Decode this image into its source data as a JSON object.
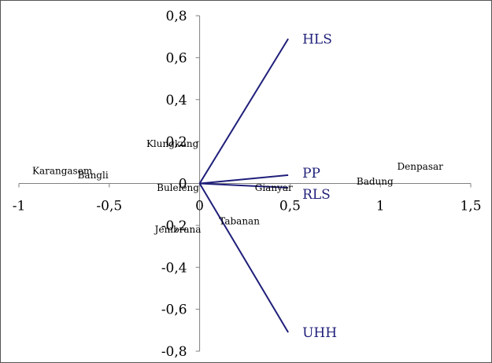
{
  "chart_data": {
    "type": "scatter",
    "title": "",
    "xlabel": "",
    "ylabel": "",
    "xlim": [
      -1,
      1.5
    ],
    "ylim": [
      -0.8,
      0.8
    ],
    "x_ticks": [
      {
        "value": -1,
        "label": "-1"
      },
      {
        "value": -0.5,
        "label": "-0,5"
      },
      {
        "value": 0,
        "label": "0"
      },
      {
        "value": 0.5,
        "label": "0,5"
      },
      {
        "value": 1,
        "label": "1"
      },
      {
        "value": 1.5,
        "label": "1,5"
      }
    ],
    "y_ticks": [
      {
        "value": 0.8,
        "label": "0,8"
      },
      {
        "value": 0.6,
        "label": "0,6"
      },
      {
        "value": 0.4,
        "label": "0,4"
      },
      {
        "value": 0.2,
        "label": "0,2"
      },
      {
        "value": 0,
        "label": "0"
      },
      {
        "value": -0.2,
        "label": "-0,2"
      },
      {
        "value": -0.4,
        "label": "-0,4"
      },
      {
        "value": -0.6,
        "label": "-0,6"
      },
      {
        "value": -0.8,
        "label": "-0,8"
      }
    ],
    "grid": false,
    "vectors": [
      {
        "label": "HLS",
        "x": 0.49,
        "y": 0.69
      },
      {
        "label": "PP",
        "x": 0.49,
        "y": 0.04
      },
      {
        "label": "RLS",
        "x": 0.49,
        "y": -0.02
      },
      {
        "label": "UHH",
        "x": 0.49,
        "y": -0.71
      }
    ],
    "observations": [
      {
        "label": "Denpasar",
        "x": 1.22,
        "y": 0.08
      },
      {
        "label": "Badung",
        "x": 0.97,
        "y": 0.01
      },
      {
        "label": "Gianyar",
        "x": 0.41,
        "y": -0.02
      },
      {
        "label": "Tabanan",
        "x": 0.22,
        "y": -0.18
      },
      {
        "label": "Klungkung",
        "x": -0.15,
        "y": 0.19
      },
      {
        "label": "Karangasem",
        "x": -0.76,
        "y": 0.06
      },
      {
        "label": "Bangli",
        "x": -0.59,
        "y": 0.04
      },
      {
        "label": "Buleleng",
        "x": -0.12,
        "y": -0.02
      },
      {
        "label": "Jembrana",
        "x": -0.12,
        "y": -0.22
      }
    ],
    "vector_color": "#1f1f7a",
    "point_color": "#000000",
    "axis_color": "#808080"
  }
}
